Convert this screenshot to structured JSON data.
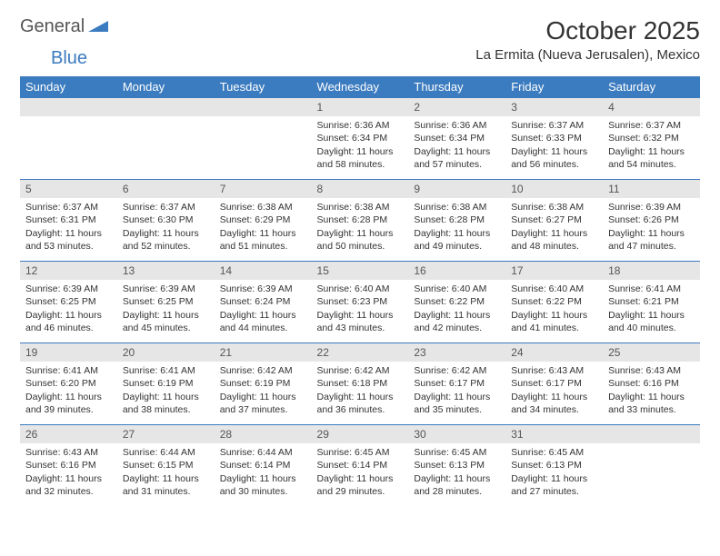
{
  "brand": {
    "general": "General",
    "blue": "Blue"
  },
  "title": {
    "month": "October 2025",
    "location": "La Ermita (Nueva Jerusalen), Mexico"
  },
  "colors": {
    "header_bg": "#3b7bbf",
    "header_text": "#ffffff",
    "daynum_bg": "#e6e6e6",
    "row_border": "#3b7bbf",
    "text": "#333333",
    "logo_gray": "#555555",
    "logo_blue": "#3b7bbf"
  },
  "day_headers": [
    "Sunday",
    "Monday",
    "Tuesday",
    "Wednesday",
    "Thursday",
    "Friday",
    "Saturday"
  ],
  "weeks": [
    [
      {
        "num": "",
        "sunrise": "",
        "sunset": "",
        "daylight1": "",
        "daylight2": ""
      },
      {
        "num": "",
        "sunrise": "",
        "sunset": "",
        "daylight1": "",
        "daylight2": ""
      },
      {
        "num": "",
        "sunrise": "",
        "sunset": "",
        "daylight1": "",
        "daylight2": ""
      },
      {
        "num": "1",
        "sunrise": "Sunrise: 6:36 AM",
        "sunset": "Sunset: 6:34 PM",
        "daylight1": "Daylight: 11 hours",
        "daylight2": "and 58 minutes."
      },
      {
        "num": "2",
        "sunrise": "Sunrise: 6:36 AM",
        "sunset": "Sunset: 6:34 PM",
        "daylight1": "Daylight: 11 hours",
        "daylight2": "and 57 minutes."
      },
      {
        "num": "3",
        "sunrise": "Sunrise: 6:37 AM",
        "sunset": "Sunset: 6:33 PM",
        "daylight1": "Daylight: 11 hours",
        "daylight2": "and 56 minutes."
      },
      {
        "num": "4",
        "sunrise": "Sunrise: 6:37 AM",
        "sunset": "Sunset: 6:32 PM",
        "daylight1": "Daylight: 11 hours",
        "daylight2": "and 54 minutes."
      }
    ],
    [
      {
        "num": "5",
        "sunrise": "Sunrise: 6:37 AM",
        "sunset": "Sunset: 6:31 PM",
        "daylight1": "Daylight: 11 hours",
        "daylight2": "and 53 minutes."
      },
      {
        "num": "6",
        "sunrise": "Sunrise: 6:37 AM",
        "sunset": "Sunset: 6:30 PM",
        "daylight1": "Daylight: 11 hours",
        "daylight2": "and 52 minutes."
      },
      {
        "num": "7",
        "sunrise": "Sunrise: 6:38 AM",
        "sunset": "Sunset: 6:29 PM",
        "daylight1": "Daylight: 11 hours",
        "daylight2": "and 51 minutes."
      },
      {
        "num": "8",
        "sunrise": "Sunrise: 6:38 AM",
        "sunset": "Sunset: 6:28 PM",
        "daylight1": "Daylight: 11 hours",
        "daylight2": "and 50 minutes."
      },
      {
        "num": "9",
        "sunrise": "Sunrise: 6:38 AM",
        "sunset": "Sunset: 6:28 PM",
        "daylight1": "Daylight: 11 hours",
        "daylight2": "and 49 minutes."
      },
      {
        "num": "10",
        "sunrise": "Sunrise: 6:38 AM",
        "sunset": "Sunset: 6:27 PM",
        "daylight1": "Daylight: 11 hours",
        "daylight2": "and 48 minutes."
      },
      {
        "num": "11",
        "sunrise": "Sunrise: 6:39 AM",
        "sunset": "Sunset: 6:26 PM",
        "daylight1": "Daylight: 11 hours",
        "daylight2": "and 47 minutes."
      }
    ],
    [
      {
        "num": "12",
        "sunrise": "Sunrise: 6:39 AM",
        "sunset": "Sunset: 6:25 PM",
        "daylight1": "Daylight: 11 hours",
        "daylight2": "and 46 minutes."
      },
      {
        "num": "13",
        "sunrise": "Sunrise: 6:39 AM",
        "sunset": "Sunset: 6:25 PM",
        "daylight1": "Daylight: 11 hours",
        "daylight2": "and 45 minutes."
      },
      {
        "num": "14",
        "sunrise": "Sunrise: 6:39 AM",
        "sunset": "Sunset: 6:24 PM",
        "daylight1": "Daylight: 11 hours",
        "daylight2": "and 44 minutes."
      },
      {
        "num": "15",
        "sunrise": "Sunrise: 6:40 AM",
        "sunset": "Sunset: 6:23 PM",
        "daylight1": "Daylight: 11 hours",
        "daylight2": "and 43 minutes."
      },
      {
        "num": "16",
        "sunrise": "Sunrise: 6:40 AM",
        "sunset": "Sunset: 6:22 PM",
        "daylight1": "Daylight: 11 hours",
        "daylight2": "and 42 minutes."
      },
      {
        "num": "17",
        "sunrise": "Sunrise: 6:40 AM",
        "sunset": "Sunset: 6:22 PM",
        "daylight1": "Daylight: 11 hours",
        "daylight2": "and 41 minutes."
      },
      {
        "num": "18",
        "sunrise": "Sunrise: 6:41 AM",
        "sunset": "Sunset: 6:21 PM",
        "daylight1": "Daylight: 11 hours",
        "daylight2": "and 40 minutes."
      }
    ],
    [
      {
        "num": "19",
        "sunrise": "Sunrise: 6:41 AM",
        "sunset": "Sunset: 6:20 PM",
        "daylight1": "Daylight: 11 hours",
        "daylight2": "and 39 minutes."
      },
      {
        "num": "20",
        "sunrise": "Sunrise: 6:41 AM",
        "sunset": "Sunset: 6:19 PM",
        "daylight1": "Daylight: 11 hours",
        "daylight2": "and 38 minutes."
      },
      {
        "num": "21",
        "sunrise": "Sunrise: 6:42 AM",
        "sunset": "Sunset: 6:19 PM",
        "daylight1": "Daylight: 11 hours",
        "daylight2": "and 37 minutes."
      },
      {
        "num": "22",
        "sunrise": "Sunrise: 6:42 AM",
        "sunset": "Sunset: 6:18 PM",
        "daylight1": "Daylight: 11 hours",
        "daylight2": "and 36 minutes."
      },
      {
        "num": "23",
        "sunrise": "Sunrise: 6:42 AM",
        "sunset": "Sunset: 6:17 PM",
        "daylight1": "Daylight: 11 hours",
        "daylight2": "and 35 minutes."
      },
      {
        "num": "24",
        "sunrise": "Sunrise: 6:43 AM",
        "sunset": "Sunset: 6:17 PM",
        "daylight1": "Daylight: 11 hours",
        "daylight2": "and 34 minutes."
      },
      {
        "num": "25",
        "sunrise": "Sunrise: 6:43 AM",
        "sunset": "Sunset: 6:16 PM",
        "daylight1": "Daylight: 11 hours",
        "daylight2": "and 33 minutes."
      }
    ],
    [
      {
        "num": "26",
        "sunrise": "Sunrise: 6:43 AM",
        "sunset": "Sunset: 6:16 PM",
        "daylight1": "Daylight: 11 hours",
        "daylight2": "and 32 minutes."
      },
      {
        "num": "27",
        "sunrise": "Sunrise: 6:44 AM",
        "sunset": "Sunset: 6:15 PM",
        "daylight1": "Daylight: 11 hours",
        "daylight2": "and 31 minutes."
      },
      {
        "num": "28",
        "sunrise": "Sunrise: 6:44 AM",
        "sunset": "Sunset: 6:14 PM",
        "daylight1": "Daylight: 11 hours",
        "daylight2": "and 30 minutes."
      },
      {
        "num": "29",
        "sunrise": "Sunrise: 6:45 AM",
        "sunset": "Sunset: 6:14 PM",
        "daylight1": "Daylight: 11 hours",
        "daylight2": "and 29 minutes."
      },
      {
        "num": "30",
        "sunrise": "Sunrise: 6:45 AM",
        "sunset": "Sunset: 6:13 PM",
        "daylight1": "Daylight: 11 hours",
        "daylight2": "and 28 minutes."
      },
      {
        "num": "31",
        "sunrise": "Sunrise: 6:45 AM",
        "sunset": "Sunset: 6:13 PM",
        "daylight1": "Daylight: 11 hours",
        "daylight2": "and 27 minutes."
      },
      {
        "num": "",
        "sunrise": "",
        "sunset": "",
        "daylight1": "",
        "daylight2": ""
      }
    ]
  ]
}
